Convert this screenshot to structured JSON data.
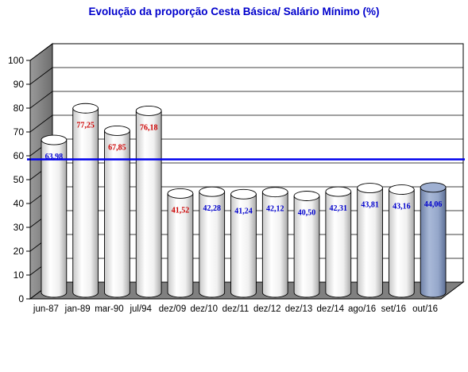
{
  "chart_data": {
    "type": "bar",
    "title": "Evolução da proporção Cesta Básica/ Salário Mínimo (%)",
    "xlabel": "",
    "ylabel": "",
    "ylim": [
      0,
      100
    ],
    "yticks": [
      "0",
      "10",
      "20",
      "30",
      "40",
      "50",
      "60",
      "70",
      "80",
      "90",
      "100"
    ],
    "categories": [
      "jun-87",
      "jan-89",
      "mar-90",
      "jul/94",
      "dez/09",
      "dez/10",
      "dez/11",
      "dez/12",
      "dez/13",
      "dez/14",
      "ago/16",
      "set/16",
      "out/16"
    ],
    "values": [
      63.98,
      77.25,
      67.85,
      76.18,
      41.52,
      42.28,
      41.24,
      42.12,
      40.5,
      42.31,
      43.81,
      43.16,
      44.06
    ],
    "data_labels": [
      "63,98",
      "77,25",
      "67,85",
      "76,18",
      "41,52",
      "42,28",
      "41,24",
      "42,12",
      "40,50",
      "42,31",
      "43,81",
      "43,16",
      "44,06"
    ],
    "label_colors": [
      "#0000cc",
      "#cc0000",
      "#cc0000",
      "#cc0000",
      "#cc0000",
      "#0000cc",
      "#0000cc",
      "#0000cc",
      "#0000cc",
      "#0000cc",
      "#0000cc",
      "#0000cc",
      "#0000cc"
    ],
    "highlight_index": 12,
    "reference_line": 58.5,
    "grid": true,
    "colors": {
      "bar": "#ffffff",
      "bar_highlight": "#8ea2c8",
      "reference_line": "#0000ee",
      "floor": "#808080",
      "wall": "#808080",
      "title": "#0000cc"
    }
  }
}
